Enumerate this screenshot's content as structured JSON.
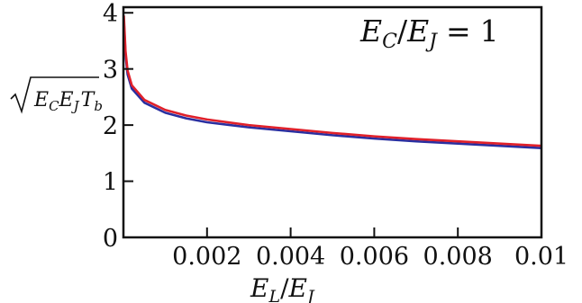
{
  "chart_data": {
    "type": "line",
    "annotation": {
      "lhs_main": "E",
      "lhs_sub": "C",
      "slash": "/",
      "rhs_main": "E",
      "rhs_sub": "J",
      "equals": "=",
      "value": "1"
    },
    "xlabel": {
      "main1": "E",
      "sub1": "L",
      "slash": "/",
      "main2": "E",
      "sub2": "J"
    },
    "ylabel": {
      "root_main1": "E",
      "root_sub1": "C",
      "root_main2": "E",
      "root_sub2": "J",
      "tail_main": "T",
      "tail_sub": "b"
    },
    "xlim": [
      0,
      0.01
    ],
    "ylim": [
      0,
      4.1
    ],
    "xticks": [
      0.002,
      0.004,
      0.006,
      0.008,
      0.01
    ],
    "xtick_labels": [
      "0.002",
      "0.004",
      "0.006",
      "0.008",
      "0.01"
    ],
    "yticks": [
      0,
      1,
      2,
      3,
      4
    ],
    "ytick_labels": [
      "0",
      "1",
      "2",
      "3",
      "4"
    ],
    "grid": false,
    "series": [
      {
        "color": "#2a2fa0",
        "x": [
          1e-05,
          5e-05,
          0.0001,
          0.0002,
          0.0005,
          0.001,
          0.0015,
          0.002,
          0.003,
          0.004,
          0.005,
          0.006,
          0.007,
          0.008,
          0.009,
          0.01
        ],
        "y": [
          3.85,
          3.25,
          2.9,
          2.65,
          2.4,
          2.22,
          2.12,
          2.05,
          1.96,
          1.89,
          1.82,
          1.76,
          1.71,
          1.67,
          1.63,
          1.59
        ]
      },
      {
        "color": "#e0202a",
        "x": [
          1e-05,
          5e-05,
          0.0001,
          0.0002,
          0.0005,
          0.001,
          0.0015,
          0.002,
          0.003,
          0.004,
          0.005,
          0.006,
          0.007,
          0.008,
          0.009,
          0.01
        ],
        "y": [
          3.95,
          3.32,
          2.97,
          2.71,
          2.45,
          2.27,
          2.17,
          2.1,
          2.0,
          1.93,
          1.86,
          1.8,
          1.75,
          1.71,
          1.67,
          1.63
        ]
      }
    ]
  }
}
